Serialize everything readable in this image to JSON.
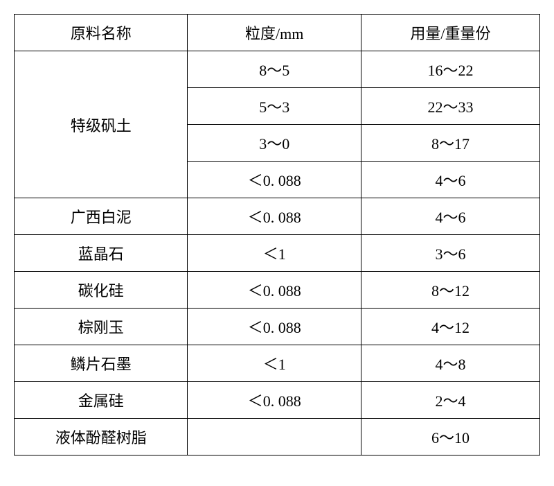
{
  "headers": {
    "name": "原料名称",
    "size": "粒度/mm",
    "amount": "用量/重量份"
  },
  "materials": [
    {
      "name": "特级矾土",
      "rows": [
        {
          "size": "8～5",
          "amount": "16～22"
        },
        {
          "size": "5～3",
          "amount": "22～33"
        },
        {
          "size": "3～0",
          "amount": "8～17"
        },
        {
          "size": "＜0. 088",
          "amount": "4～6"
        }
      ]
    },
    {
      "name": "广西白泥",
      "rows": [
        {
          "size": "＜0. 088",
          "amount": "4～6"
        }
      ]
    },
    {
      "name": "蓝晶石",
      "rows": [
        {
          "size": "＜1",
          "amount": "3～6"
        }
      ]
    },
    {
      "name": "碳化硅",
      "rows": [
        {
          "size": "＜0. 088",
          "amount": "8～12"
        }
      ]
    },
    {
      "name": "棕刚玉",
      "rows": [
        {
          "size": "＜0. 088",
          "amount": "4～12"
        }
      ]
    },
    {
      "name": "鳞片石墨",
      "rows": [
        {
          "size": "＜1",
          "amount": "4～8"
        }
      ]
    },
    {
      "name": "金属硅",
      "rows": [
        {
          "size": "＜0. 088",
          "amount": "2～4"
        }
      ]
    },
    {
      "name": "液体酚醛树脂",
      "rows": [
        {
          "size": "",
          "amount": "6～10"
        }
      ]
    }
  ]
}
